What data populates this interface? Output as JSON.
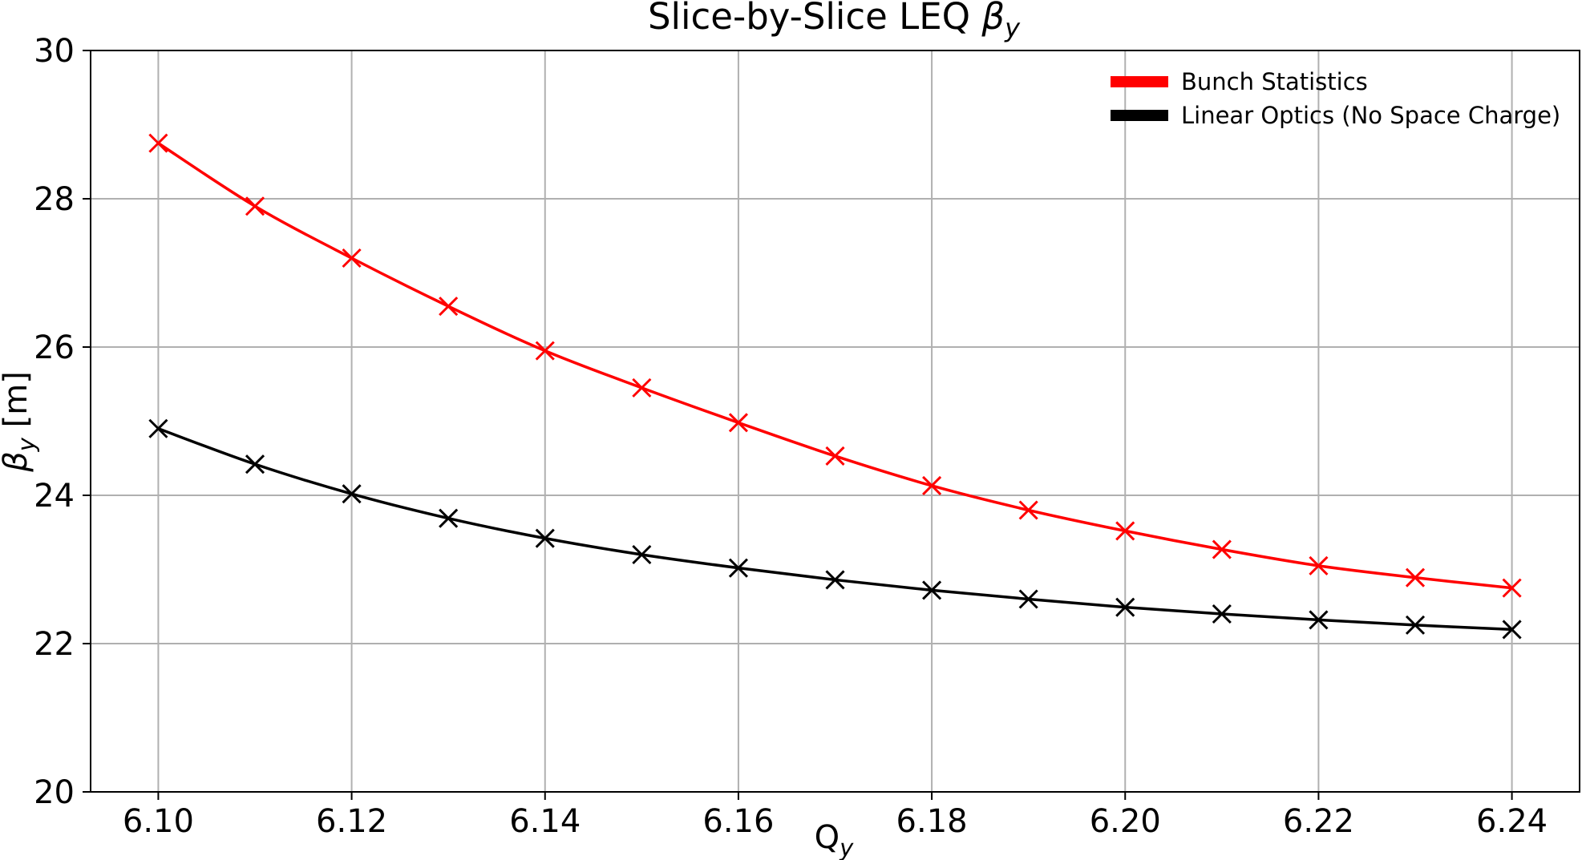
{
  "chart_data": {
    "type": "line",
    "title": {
      "main": "Slice-by-Slice LEQ ",
      "symbol": "β",
      "sub": "y"
    },
    "xlabel": {
      "main": "Q",
      "sub": "y"
    },
    "ylabel": {
      "symbol": "β",
      "sub": "y",
      "unit": " [m]"
    },
    "x": [
      6.1,
      6.11,
      6.12,
      6.13,
      6.14,
      6.15,
      6.16,
      6.17,
      6.18,
      6.19,
      6.2,
      6.21,
      6.22,
      6.23,
      6.24
    ],
    "xticks": [
      "6.10",
      "6.12",
      "6.14",
      "6.16",
      "6.18",
      "6.20",
      "6.22",
      "6.24"
    ],
    "yticks": [
      "20",
      "22",
      "24",
      "26",
      "28",
      "30"
    ],
    "ylim": [
      20,
      30
    ],
    "xlim": [
      6.093,
      6.247
    ],
    "grid": true,
    "legend_position": "top-right",
    "marker": "x",
    "series": [
      {
        "name": "Bunch Statistics",
        "color": "#ff0000",
        "values": [
          28.75,
          27.9,
          27.2,
          26.55,
          25.95,
          25.45,
          24.98,
          24.53,
          24.13,
          23.8,
          23.52,
          23.27,
          23.05,
          22.89,
          22.75
        ]
      },
      {
        "name": "Linear Optics (No Space Charge)",
        "color": "#000000",
        "values": [
          24.9,
          24.42,
          24.02,
          23.69,
          23.42,
          23.2,
          23.02,
          22.86,
          22.72,
          22.6,
          22.49,
          22.4,
          22.32,
          22.25,
          22.19
        ]
      }
    ]
  }
}
